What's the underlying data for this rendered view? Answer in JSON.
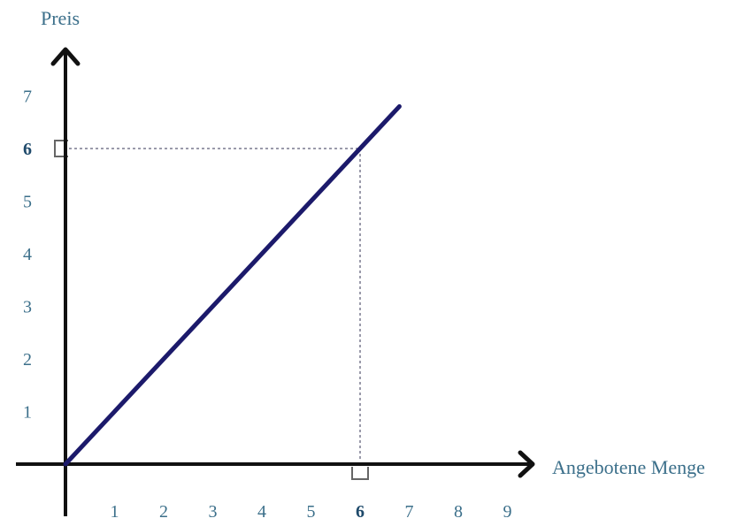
{
  "chart_data": {
    "type": "line",
    "xlabel": "Angebotene Menge",
    "ylabel": "Preis",
    "x_ticks": [
      "1",
      "2",
      "3",
      "4",
      "5",
      "6",
      "7",
      "8",
      "9"
    ],
    "y_ticks": [
      "1",
      "2",
      "3",
      "4",
      "5",
      "6",
      "7"
    ],
    "xlim": [
      0,
      10
    ],
    "ylim": [
      0,
      7.8
    ],
    "grid": false,
    "series": [
      {
        "x": [
          0,
          6,
          6.8
        ],
        "y": [
          0,
          6,
          6.8
        ]
      }
    ],
    "highlight": {
      "x": 6,
      "y": 6
    },
    "colors": {
      "line": "#1c1a6b",
      "axis": "#111111",
      "tick_label": "#3b6f8a",
      "highlight_label": "#1f4a6b",
      "axis_title": "#3b6f8a",
      "guide": "#9a9aaa"
    }
  }
}
